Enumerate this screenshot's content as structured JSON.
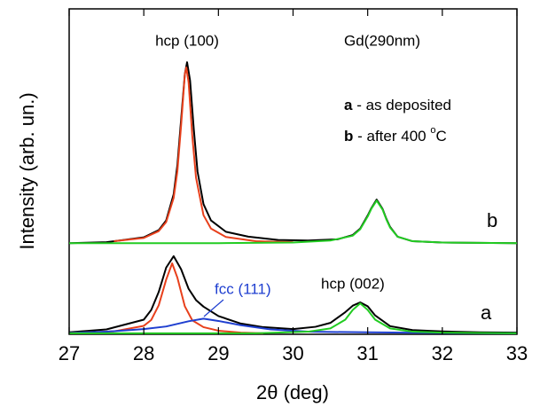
{
  "chart_data": {
    "type": "line",
    "x_label": "2θ (deg)",
    "y_label": "Intensity (arb. un.)",
    "xlim": [
      27,
      33
    ],
    "xticks": [
      27,
      28,
      29,
      30,
      31,
      32,
      33
    ],
    "ylim": [
      0,
      100
    ],
    "annotations": {
      "peak_100": "hcp (100)",
      "sample": "Gd(290nm)",
      "note_a": [
        "a",
        "- as deposited"
      ],
      "note_b": [
        "b",
        "- after 400 ",
        "o",
        "C"
      ],
      "curve_b": "b",
      "curve_a": "a",
      "fcc": "fcc (111)",
      "peak_002": "hcp (002)"
    },
    "series": [
      {
        "color": "#000000",
        "x": [
          27.0,
          27.5,
          28.0,
          28.2,
          28.3,
          28.4,
          28.45,
          28.5,
          28.55,
          28.58,
          28.62,
          28.67,
          28.72,
          28.8,
          28.9,
          29.1,
          29.4,
          29.8,
          30.2,
          30.6,
          30.8,
          30.9,
          31.0,
          31.05,
          31.12,
          31.2,
          31.25,
          31.3,
          31.4,
          31.6,
          32.0,
          32.5,
          33.0
        ],
        "values": [
          28.0,
          28.3,
          29.8,
          32.0,
          35.0,
          43,
          52,
          66,
          80,
          83.6,
          78,
          63,
          50,
          40,
          35,
          31.5,
          30,
          29,
          28.8,
          29.2,
          30.5,
          32.5,
          36.5,
          38.8,
          41.4,
          38.5,
          35.5,
          33,
          30,
          28.6,
          28.2,
          28.1,
          28.0
        ]
      },
      {
        "color": "#e8401c",
        "x": [
          27.6,
          28.0,
          28.2,
          28.3,
          28.4,
          28.45,
          28.5,
          28.55,
          28.57,
          28.6,
          28.65,
          28.7,
          28.8,
          28.9,
          29.1,
          29.5,
          30.0
        ],
        "values": [
          28.6,
          29.6,
          31.7,
          34.5,
          41.9,
          50.1,
          64.2,
          79.9,
          82,
          77.5,
          60.9,
          48.1,
          36.6,
          32.5,
          29.9,
          28.6,
          28.3
        ]
      },
      {
        "color": "#22cc22",
        "x": [
          27.0,
          29.0,
          30.0,
          30.5,
          30.8,
          30.9,
          31.0,
          31.05,
          31.12,
          31.2,
          31.25,
          31.3,
          31.4,
          31.6,
          32.0,
          33.0
        ],
        "values": [
          28,
          28,
          28.2,
          28.8,
          30.3,
          32.3,
          36.2,
          38.6,
          41.1,
          38.3,
          35.3,
          32.8,
          30,
          28.6,
          28.2,
          28.0
        ]
      },
      {
        "color": "#000000",
        "x": [
          27.0,
          27.5,
          28.0,
          28.1,
          28.2,
          28.3,
          28.4,
          28.5,
          28.6,
          28.7,
          28.8,
          29.0,
          29.3,
          29.6,
          30.0,
          30.3,
          30.5,
          30.7,
          30.8,
          30.9,
          31.0,
          31.1,
          31.3,
          31.6,
          32.0,
          32.5,
          33.0
        ],
        "values": [
          0.6,
          1.5,
          4.5,
          7.5,
          13,
          20.5,
          24,
          20,
          14,
          10.5,
          8.5,
          5.6,
          3.3,
          2.2,
          1.6,
          2.3,
          3.5,
          6.8,
          8.8,
          9.8,
          8.6,
          5.8,
          2.5,
          1.3,
          0.9,
          0.6,
          0.5
        ]
      },
      {
        "color": "#e8401c",
        "x": [
          27.0,
          27.6,
          28.0,
          28.1,
          28.2,
          28.3,
          28.38,
          28.45,
          28.55,
          28.65,
          28.8,
          29.0,
          29.3,
          29.6
        ],
        "values": [
          0.4,
          0.9,
          2.6,
          4.4,
          8.9,
          16.8,
          21.8,
          17.4,
          8.6,
          4.3,
          2.2,
          1.1,
          0.5,
          0.3
        ]
      },
      {
        "color": "#1f3fd0",
        "x": [
          27.0,
          27.5,
          28.0,
          28.3,
          28.6,
          28.8,
          29.0,
          29.3,
          29.7,
          30.2,
          31.0,
          32.0,
          33.0
        ],
        "values": [
          0.4,
          0.8,
          1.6,
          2.4,
          4.0,
          4.8,
          4.1,
          2.8,
          1.5,
          0.8,
          0.6,
          0.4,
          0.3
        ]
      },
      {
        "color": "#22cc22",
        "x": [
          27.0,
          29.5,
          30.2,
          30.5,
          30.7,
          30.8,
          30.9,
          31.0,
          31.1,
          31.3,
          31.6,
          32.0,
          33.0
        ],
        "values": [
          0.3,
          0.3,
          0.8,
          1.8,
          4.5,
          7.5,
          9.5,
          7.5,
          4.5,
          1.8,
          0.8,
          0.5,
          0.3
        ]
      }
    ]
  }
}
